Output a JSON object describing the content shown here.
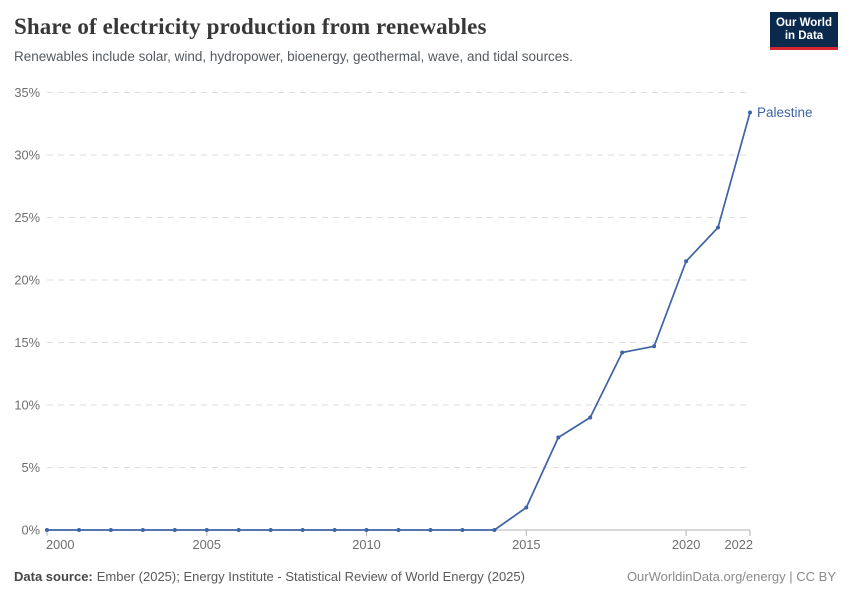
{
  "header": {
    "title": "Share of electricity production from renewables",
    "subtitle": "Renewables include solar, wind, hydropower, bioenergy, geothermal, wave, and tidal sources.",
    "logo": {
      "line1": "Our World",
      "line2": "in Data"
    }
  },
  "chart_data": {
    "type": "line",
    "title": "Share of electricity production from renewables",
    "xlabel": "",
    "ylabel": "",
    "xlim": [
      2000,
      2022
    ],
    "ylim": [
      0,
      35
    ],
    "x_ticks": [
      2000,
      2005,
      2010,
      2015,
      2020,
      2022
    ],
    "y_ticks": [
      0,
      5,
      10,
      15,
      20,
      25,
      30,
      35
    ],
    "y_tick_suffix": "%",
    "grid": "horizontal-dashed",
    "legend_position": "end-of-line-label",
    "series": [
      {
        "name": "Palestine",
        "color": "#3e63a6",
        "x": [
          2000,
          2001,
          2002,
          2003,
          2004,
          2005,
          2006,
          2007,
          2008,
          2009,
          2010,
          2011,
          2012,
          2013,
          2014,
          2015,
          2016,
          2017,
          2018,
          2019,
          2020,
          2021,
          2022
        ],
        "values": [
          0,
          0,
          0,
          0,
          0,
          0,
          0,
          0,
          0,
          0,
          0,
          0,
          0,
          0,
          0,
          1.8,
          7.4,
          9.0,
          14.2,
          14.7,
          21.5,
          24.2,
          33.4
        ]
      }
    ]
  },
  "footer": {
    "source_label": "Data source:",
    "source_text": "Ember (2025); Energy Institute - Statistical Review of World Energy (2025)",
    "license": "OurWorldinData.org/energy | CC BY"
  },
  "colors": {
    "line": "#3e63a6",
    "grid": "#dedede",
    "axis": "#b3b3b3",
    "tick_label": "#6e6e6e",
    "logo_bg": "#0a2a4d",
    "logo_red": "#d9262e"
  }
}
